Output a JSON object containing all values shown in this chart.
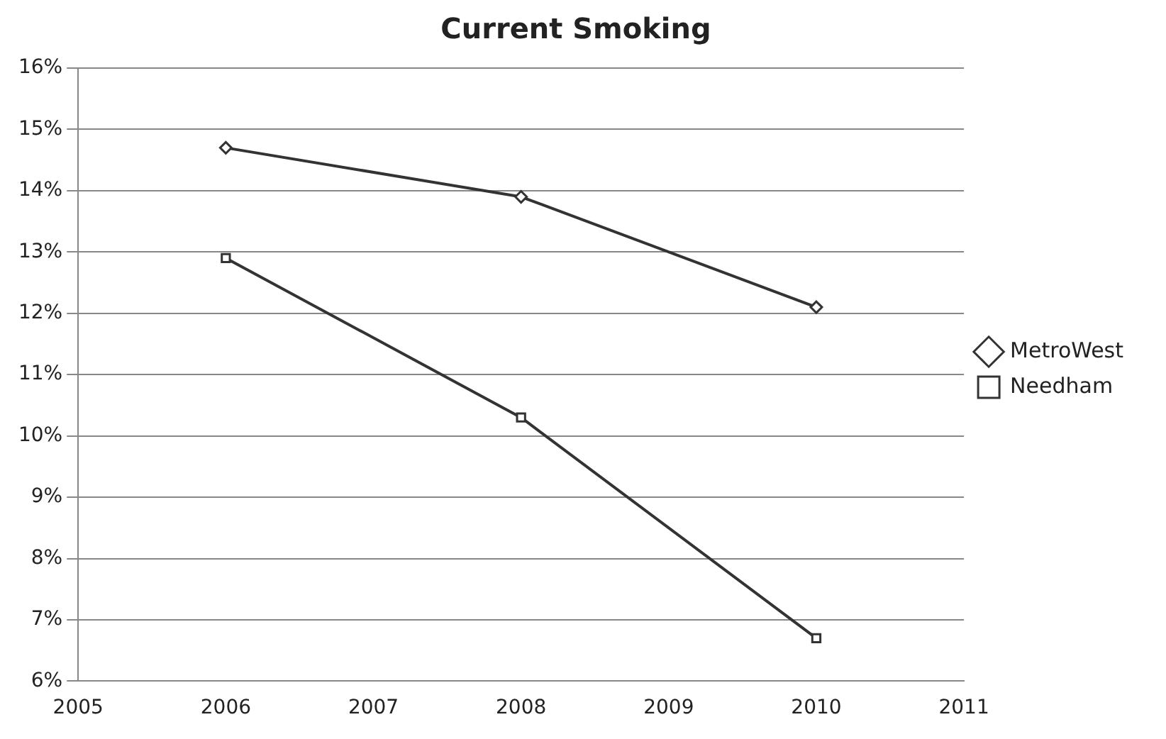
{
  "chart_data": {
    "type": "line",
    "title": "Current Smoking",
    "x": [
      2006,
      2008,
      2010
    ],
    "series": [
      {
        "name": "MetroWest",
        "color": "#333333",
        "values": [
          14.7,
          13.9,
          12.1
        ],
        "marker": "diamond"
      },
      {
        "name": "Needham",
        "color": "#333333",
        "values": [
          12.9,
          10.3,
          6.7
        ],
        "marker": "square"
      }
    ],
    "xlim": [
      2005,
      2011
    ],
    "xticks": [
      2005,
      2006,
      2007,
      2008,
      2009,
      2010,
      2011
    ],
    "ylim": [
      6,
      16
    ],
    "yticks": [
      {
        "value": 6,
        "label": "6%"
      },
      {
        "value": 7,
        "label": "7%"
      },
      {
        "value": 8,
        "label": "8%"
      },
      {
        "value": 9,
        "label": "9%"
      },
      {
        "value": 10,
        "label": "10%"
      },
      {
        "value": 11,
        "label": "11%"
      },
      {
        "value": 12,
        "label": "12%"
      },
      {
        "value": 13,
        "label": "13%"
      },
      {
        "value": 14,
        "label": "14%"
      },
      {
        "value": 15,
        "label": "15%"
      },
      {
        "value": 16,
        "label": "16%"
      }
    ],
    "grid": "y",
    "legend": "right",
    "line_style": "solid"
  }
}
